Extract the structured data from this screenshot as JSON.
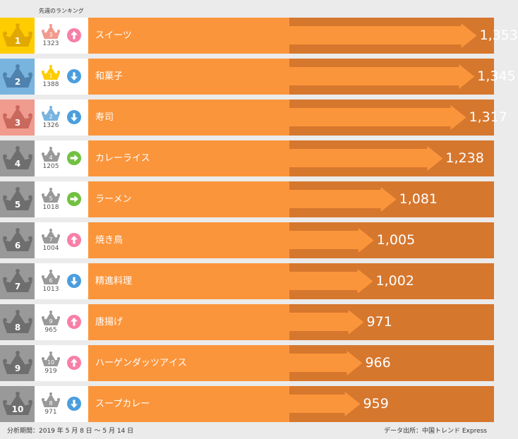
{
  "header": {
    "prev_label": "先週のランキング"
  },
  "footer": {
    "period": "分析期間：2019 年 5 月 8 日 ～ 5 月 14 日",
    "source": "データ出所：中国トレンド Express"
  },
  "colors": {
    "gold": "#ffcc00",
    "blue": "#79b4df",
    "pink": "#f19a8e",
    "gray": "#999999",
    "name_bg": "#fb953b",
    "value_bg": "#d6772e",
    "up": "#f77fa8",
    "down": "#4a9ede",
    "same": "#72c040"
  },
  "chart_data": {
    "type": "bar",
    "title": "",
    "xlabel": "",
    "ylabel": "",
    "categories": [
      "スイーツ",
      "和菓子",
      "寿司",
      "カレーライス",
      "ラーメン",
      "焼き鳥",
      "精進料理",
      "唐揚げ",
      "ハーゲンダッツアイス",
      "スープカレー"
    ],
    "values": [
      1353,
      1345,
      1317,
      1238,
      1081,
      1005,
      1002,
      971,
      966,
      959
    ],
    "ranks": [
      "1",
      "2",
      "3",
      "4",
      "5",
      "6",
      "7",
      "8",
      "9",
      "10"
    ],
    "prev_ranks": [
      "3",
      "1",
      "2",
      "4",
      "5",
      "7",
      "6",
      "9",
      "10",
      "8"
    ],
    "prev_values": [
      1323,
      1388,
      1326,
      1205,
      1018,
      1004,
      1013,
      965,
      919,
      971
    ],
    "trend": [
      "up",
      "down",
      "down",
      "same",
      "same",
      "up",
      "down",
      "up",
      "up",
      "down"
    ]
  }
}
